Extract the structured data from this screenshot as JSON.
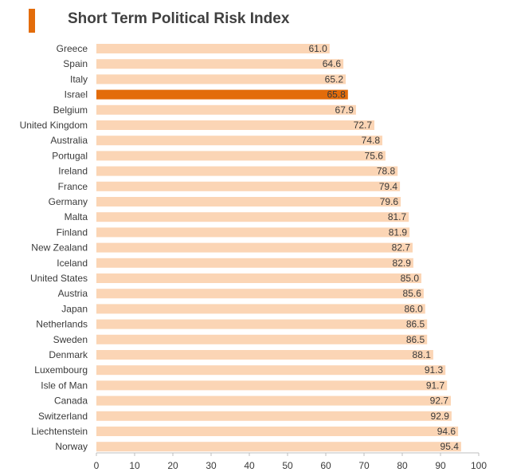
{
  "title": "Short Term Political Risk Index",
  "colors": {
    "bar": "#fbd5b5",
    "highlight": "#e36c0a",
    "accent": "#e36c0a",
    "axis": "#bfbfbf",
    "text": "#3a3a3a"
  },
  "chart_data": {
    "type": "bar",
    "orientation": "horizontal",
    "title": "Short Term Political Risk Index",
    "xlabel": "",
    "ylabel": "",
    "xlim": [
      0,
      100
    ],
    "x_ticks": [
      0,
      10,
      20,
      30,
      40,
      50,
      60,
      70,
      80,
      90,
      100
    ],
    "grid": false,
    "highlight_category": "Israel",
    "categories": [
      "Greece",
      "Spain",
      "Italy",
      "Israel",
      "Belgium",
      "United Kingdom",
      "Australia",
      "Portugal",
      "Ireland",
      "France",
      "Germany",
      "Malta",
      "Finland",
      "New Zealand",
      "Iceland",
      "United States",
      "Austria",
      "Japan",
      "Netherlands",
      "Sweden",
      "Denmark",
      "Luxembourg",
      "Isle of Man",
      "Canada",
      "Switzerland",
      "Liechtenstein",
      "Norway"
    ],
    "values": [
      61.0,
      64.6,
      65.2,
      65.8,
      67.9,
      72.7,
      74.8,
      75.6,
      78.8,
      79.4,
      79.6,
      81.7,
      81.9,
      82.7,
      82.9,
      85.0,
      85.6,
      86.0,
      86.5,
      86.5,
      88.1,
      91.3,
      91.7,
      92.7,
      92.9,
      94.6,
      95.4
    ],
    "value_labels": [
      "61.0",
      "64.6",
      "65.2",
      "65.8",
      "67.9",
      "72.7",
      "74.8",
      "75.6",
      "78.8",
      "79.4",
      "79.6",
      "81.7",
      "81.9",
      "82.7",
      "82.9",
      "85.0",
      "85.6",
      "86.0",
      "86.5",
      "86.5",
      "88.1",
      "91.3",
      "91.7",
      "92.7",
      "92.9",
      "94.6",
      "95.4"
    ]
  }
}
